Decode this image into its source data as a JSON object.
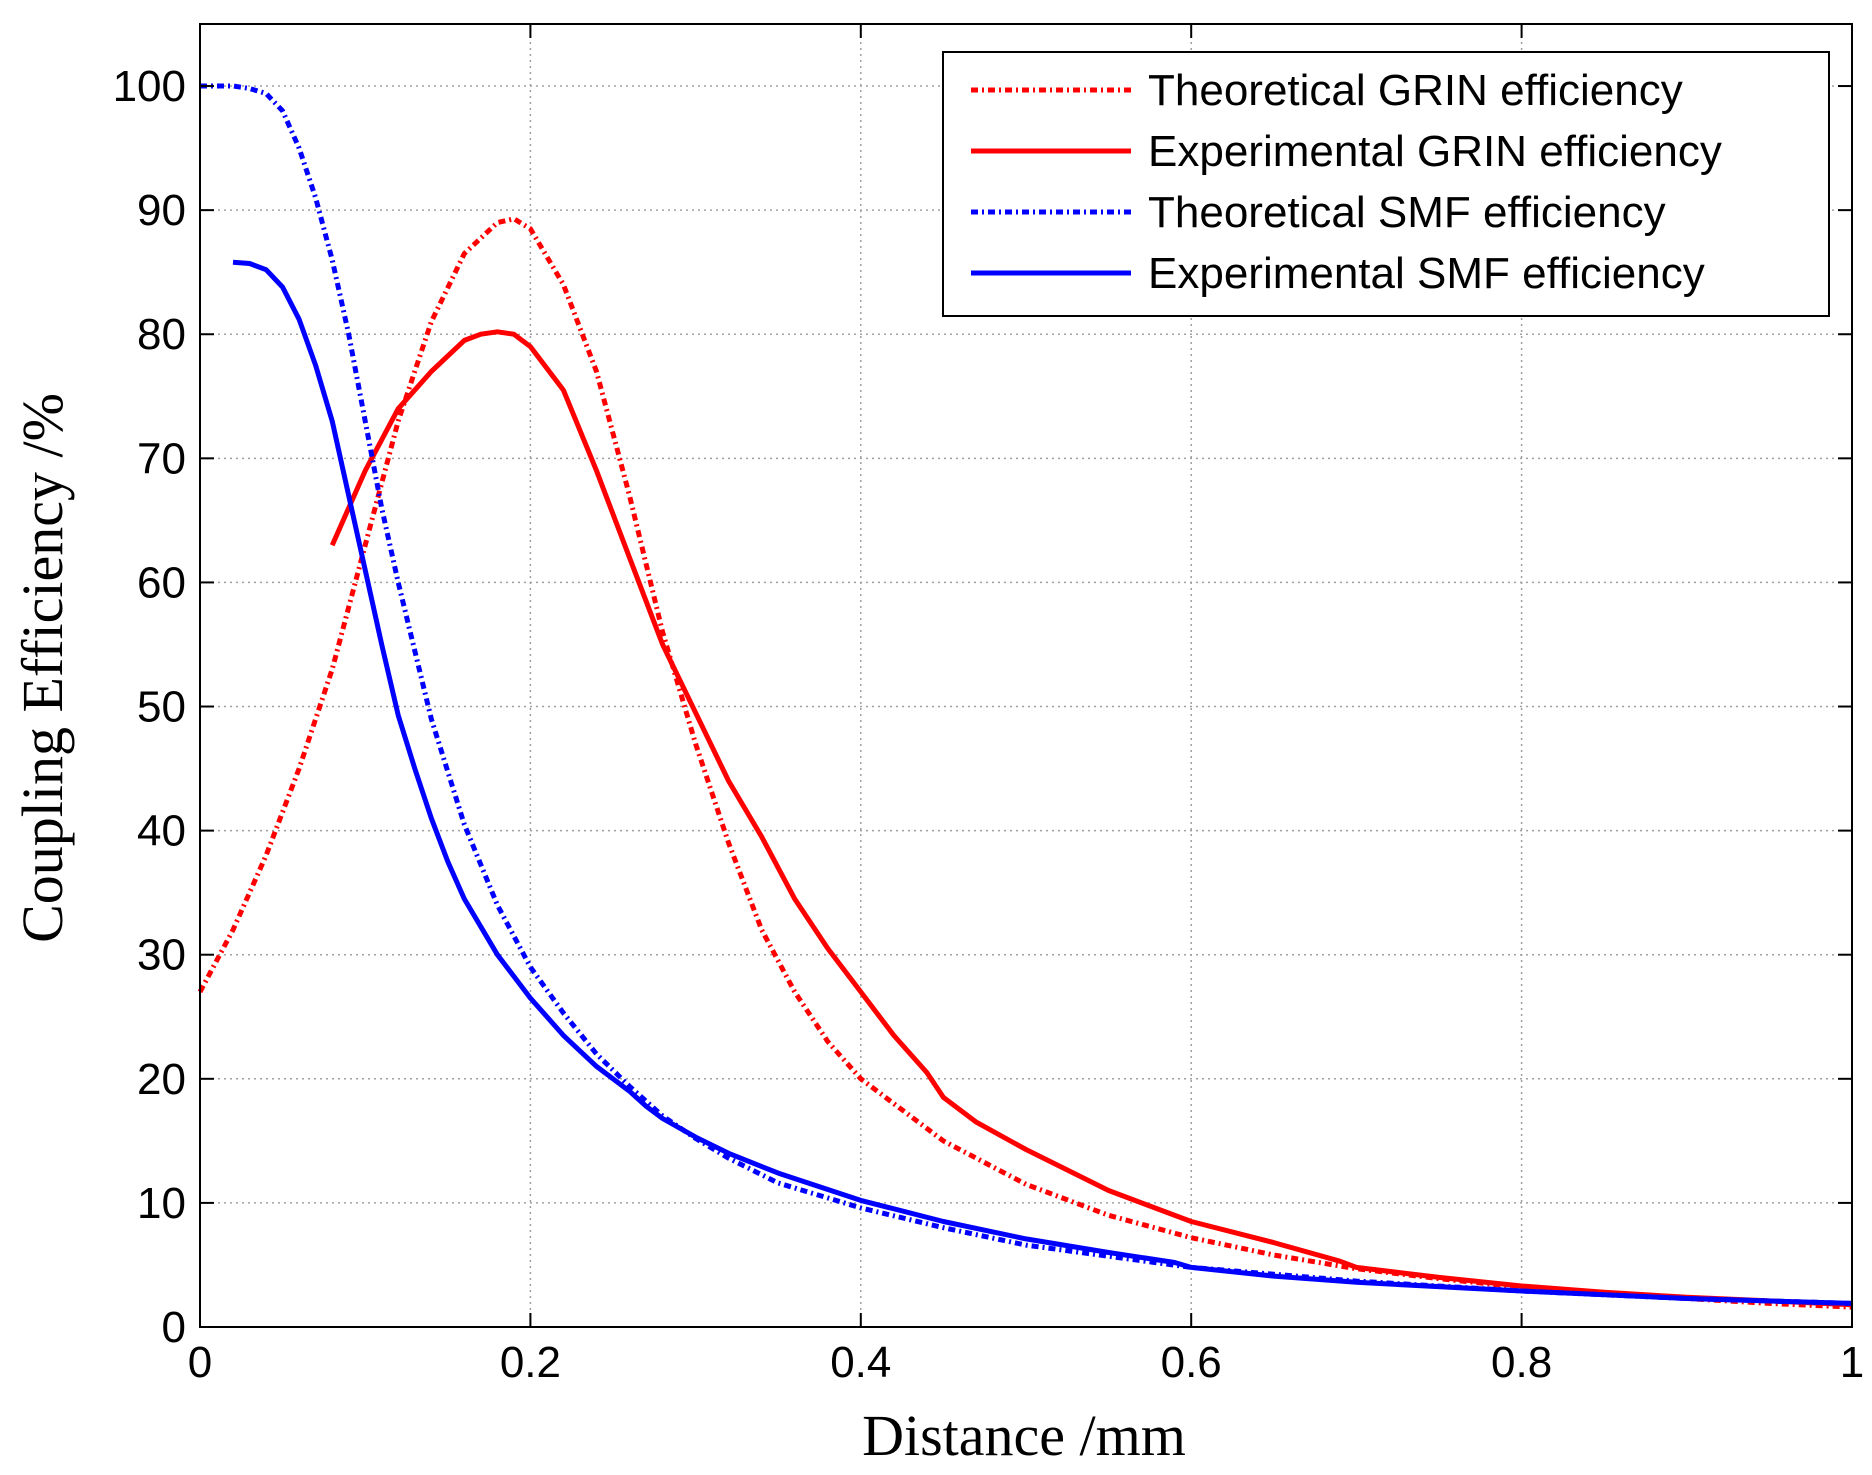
{
  "chart_data": {
    "type": "line",
    "title": "",
    "xlabel": "Distance /mm",
    "ylabel": "Coupling Efficiency /%",
    "xlim": [
      0,
      1
    ],
    "ylim": [
      0,
      105
    ],
    "xticks": [
      0,
      0.2,
      0.4,
      0.6,
      0.8,
      1
    ],
    "xtick_labels": [
      "0",
      "0.2",
      "0.4",
      "0.6",
      "0.8",
      "1"
    ],
    "yticks": [
      0,
      10,
      20,
      30,
      40,
      50,
      60,
      70,
      80,
      90,
      100
    ],
    "ytick_labels": [
      "0",
      "10",
      "20",
      "30",
      "40",
      "50",
      "60",
      "70",
      "80",
      "90",
      "100"
    ],
    "grid": true,
    "legend_position": "top-right",
    "series": [
      {
        "name": "Theoretical GRIN efficiency",
        "color": "#ff0000",
        "style": "dashdot",
        "x": [
          0,
          0.02,
          0.04,
          0.06,
          0.08,
          0.1,
          0.12,
          0.14,
          0.16,
          0.18,
          0.19,
          0.2,
          0.22,
          0.24,
          0.26,
          0.28,
          0.3,
          0.32,
          0.34,
          0.36,
          0.38,
          0.4,
          0.45,
          0.5,
          0.55,
          0.6,
          0.65,
          0.7,
          0.75,
          0.8,
          0.85,
          0.9,
          0.95,
          1.0
        ],
        "y": [
          27,
          32,
          38,
          45,
          53,
          63,
          73,
          81,
          86.5,
          89,
          89.3,
          88.5,
          84,
          77,
          67,
          56,
          47,
          39,
          32,
          27,
          23,
          20,
          15,
          11.5,
          9,
          7.2,
          5.8,
          4.7,
          3.9,
          3.2,
          2.7,
          2.3,
          1.9,
          1.6
        ]
      },
      {
        "name": "Experimental GRIN efficiency",
        "color": "#ff0000",
        "style": "solid",
        "x": [
          0.08,
          0.1,
          0.12,
          0.14,
          0.16,
          0.17,
          0.18,
          0.19,
          0.2,
          0.22,
          0.24,
          0.26,
          0.28,
          0.3,
          0.32,
          0.34,
          0.36,
          0.38,
          0.4,
          0.42,
          0.44,
          0.45,
          0.47,
          0.5,
          0.55,
          0.6,
          0.65,
          0.69,
          0.7,
          0.75,
          0.8,
          0.85,
          0.9,
          0.95,
          1.0
        ],
        "y": [
          63,
          69,
          74,
          77,
          79.5,
          80,
          80.2,
          80,
          79,
          75.5,
          69,
          62,
          55,
          49.5,
          44,
          39.5,
          34.5,
          30.5,
          27,
          23.5,
          20.5,
          18.5,
          16.5,
          14.3,
          11,
          8.5,
          6.8,
          5.3,
          4.8,
          4,
          3.3,
          2.8,
          2.4,
          2.1,
          1.8
        ]
      },
      {
        "name": "Theoretical SMF efficiency",
        "color": "#0000ff",
        "style": "dashdot",
        "x": [
          0,
          0.02,
          0.03,
          0.04,
          0.05,
          0.06,
          0.07,
          0.08,
          0.09,
          0.1,
          0.11,
          0.12,
          0.14,
          0.16,
          0.18,
          0.2,
          0.22,
          0.24,
          0.26,
          0.28,
          0.3,
          0.32,
          0.35,
          0.4,
          0.45,
          0.5,
          0.6,
          0.7,
          0.8,
          0.9,
          1.0
        ],
        "y": [
          100,
          100,
          99.8,
          99.4,
          98,
          95,
          91,
          86,
          80,
          73,
          66,
          60,
          49,
          40.5,
          34,
          29,
          25.3,
          22,
          19.4,
          17,
          15.2,
          13.6,
          11.6,
          9.6,
          8,
          6.6,
          4.8,
          3.7,
          2.9,
          2.3,
          1.9
        ]
      },
      {
        "name": "Experimental SMF efficiency",
        "color": "#0000ff",
        "style": "solid",
        "x": [
          0.02,
          0.03,
          0.04,
          0.05,
          0.06,
          0.07,
          0.08,
          0.09,
          0.1,
          0.11,
          0.12,
          0.13,
          0.14,
          0.15,
          0.16,
          0.18,
          0.2,
          0.22,
          0.24,
          0.26,
          0.27,
          0.28,
          0.3,
          0.32,
          0.35,
          0.4,
          0.45,
          0.5,
          0.55,
          0.59,
          0.6,
          0.65,
          0.7,
          0.8,
          0.9,
          1.0
        ],
        "y": [
          85.8,
          85.7,
          85.2,
          83.8,
          81.2,
          77.5,
          73,
          67,
          61,
          55,
          49.3,
          45,
          41,
          37.5,
          34.5,
          30,
          26.5,
          23.5,
          21,
          19,
          17.8,
          16.8,
          15.3,
          14,
          12.4,
          10.2,
          8.5,
          7.1,
          6,
          5.2,
          4.8,
          4.1,
          3.6,
          2.9,
          2.3,
          1.9
        ]
      }
    ]
  }
}
